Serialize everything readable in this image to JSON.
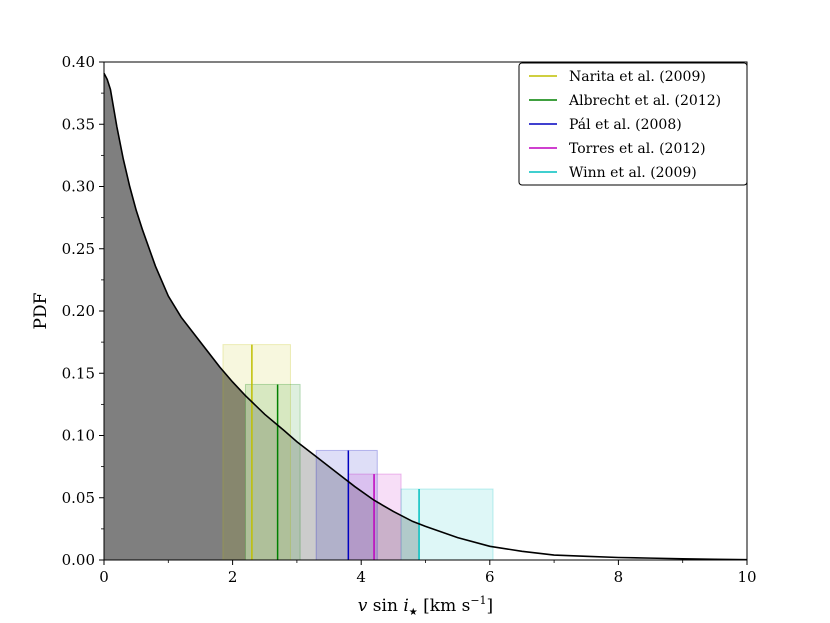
{
  "chart_data": {
    "type": "area",
    "xlabel_parts": {
      "v": "v",
      "sin": " sin ",
      "i": "i",
      "star": "★",
      "unit": " [km s",
      "exp": "−1",
      "close": "]"
    },
    "ylabel": "PDF",
    "xlim": [
      0,
      10
    ],
    "ylim": [
      0,
      0.4
    ],
    "x_ticks": [
      "0",
      "2",
      "4",
      "6",
      "8",
      "10"
    ],
    "y_ticks": [
      "0.00",
      "0.05",
      "0.10",
      "0.15",
      "0.20",
      "0.25",
      "0.30",
      "0.35",
      "0.40"
    ],
    "grid": false,
    "legend_position": "top-right",
    "pdf_curve": {
      "x": [
        0.0,
        0.05,
        0.1,
        0.2,
        0.3,
        0.4,
        0.5,
        0.6,
        0.8,
        1.0,
        1.2,
        1.5,
        1.8,
        2.0,
        2.2,
        2.5,
        2.8,
        3.0,
        3.3,
        3.6,
        3.9,
        4.2,
        4.5,
        4.8,
        5.0,
        5.5,
        6.0,
        6.5,
        7.0,
        7.5,
        8.0,
        8.5,
        9.0,
        9.5,
        10.0
      ],
      "y": [
        0.391,
        0.386,
        0.378,
        0.348,
        0.322,
        0.3,
        0.281,
        0.265,
        0.236,
        0.212,
        0.195,
        0.175,
        0.155,
        0.143,
        0.132,
        0.117,
        0.104,
        0.095,
        0.083,
        0.071,
        0.059,
        0.048,
        0.039,
        0.031,
        0.027,
        0.018,
        0.011,
        0.007,
        0.004,
        0.003,
        0.002,
        0.0015,
        0.001,
        0.0006,
        0.0003
      ]
    },
    "shaded_regions": [
      {
        "x_from": 0.0,
        "x_to": 2.2,
        "color": "#7f7f7f"
      },
      {
        "x_from": 2.2,
        "x_to": 4.9,
        "color": "#cccccc"
      }
    ],
    "series": [
      {
        "name": "Narita et al. (2009)",
        "color": "#bfbf00",
        "value": 2.3,
        "height": 0.173,
        "lo": 1.85,
        "hi": 2.9
      },
      {
        "name": "Albrecht et al. (2012)",
        "color": "#008000",
        "value": 2.7,
        "height": 0.141,
        "lo": 2.2,
        "hi": 3.05
      },
      {
        "name": "Pál et al. (2008)",
        "color": "#0000bf",
        "value": 3.8,
        "height": 0.088,
        "lo": 3.3,
        "hi": 4.25
      },
      {
        "name": "Torres et al. (2012)",
        "color": "#bf00bf",
        "value": 4.2,
        "height": 0.069,
        "lo": 3.8,
        "hi": 4.62
      },
      {
        "name": "Winn et al. (2009)",
        "color": "#00bfbf",
        "value": 4.9,
        "height": 0.057,
        "lo": 4.62,
        "hi": 6.05
      }
    ]
  }
}
